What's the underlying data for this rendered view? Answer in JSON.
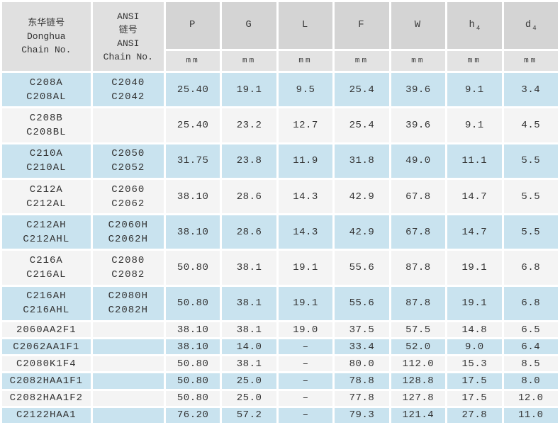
{
  "colors": {
    "row_highlight_blue": "#c9e3ef",
    "row_plain": "#f4f4f4",
    "header_symbol_bg": "#d4d4d4",
    "header_unit_bg": "#e3e3e3",
    "header_name_bg": "#e0e0e0",
    "text": "#333333"
  },
  "table": {
    "header": {
      "donghua": "东华链号\nDonghua\nChain No.",
      "ansi": "ANSI\n链号\nANSI\nChain No."
    },
    "columns": [
      {
        "symbol": "P",
        "sub": "",
        "unit": "mm"
      },
      {
        "symbol": "G",
        "sub": "",
        "unit": "mm"
      },
      {
        "symbol": "L",
        "sub": "",
        "unit": "mm"
      },
      {
        "symbol": "F",
        "sub": "",
        "unit": "mm"
      },
      {
        "symbol": "W",
        "sub": "",
        "unit": "mm"
      },
      {
        "symbol": "h",
        "sub": "4",
        "unit": "mm"
      },
      {
        "symbol": "d",
        "sub": "4",
        "unit": "mm"
      }
    ],
    "rows": [
      {
        "donghua": "C208A\nC208AL",
        "ansi": "C2040\nC2042",
        "shaded": true,
        "values": [
          "25.40",
          "19.1",
          "9.5",
          "25.4",
          "39.6",
          "9.1",
          "3.4"
        ]
      },
      {
        "donghua": "C208B\nC208BL",
        "ansi": "",
        "shaded": false,
        "values": [
          "25.40",
          "23.2",
          "12.7",
          "25.4",
          "39.6",
          "9.1",
          "4.5"
        ]
      },
      {
        "donghua": "C210A\nC210AL",
        "ansi": "C2050\nC2052",
        "shaded": true,
        "values": [
          "31.75",
          "23.8",
          "11.9",
          "31.8",
          "49.0",
          "11.1",
          "5.5"
        ]
      },
      {
        "donghua": "C212A\nC212AL",
        "ansi": "C2060\nC2062",
        "shaded": false,
        "values": [
          "38.10",
          "28.6",
          "14.3",
          "42.9",
          "67.8",
          "14.7",
          "5.5"
        ]
      },
      {
        "donghua": "C212AH\nC212AHL",
        "ansi": "C2060H\nC2062H",
        "shaded": true,
        "values": [
          "38.10",
          "28.6",
          "14.3",
          "42.9",
          "67.8",
          "14.7",
          "5.5"
        ]
      },
      {
        "donghua": "C216A\nC216AL",
        "ansi": "C2080\nC2082",
        "shaded": false,
        "values": [
          "50.80",
          "38.1",
          "19.1",
          "55.6",
          "87.8",
          "19.1",
          "6.8"
        ]
      },
      {
        "donghua": "C216AH\nC216AHL",
        "ansi": "C2080H\nC2082H",
        "shaded": true,
        "values": [
          "50.80",
          "38.1",
          "19.1",
          "55.6",
          "87.8",
          "19.1",
          "6.8"
        ]
      },
      {
        "donghua": "2060AA2F1",
        "ansi": "",
        "shaded": false,
        "values": [
          "38.10",
          "38.1",
          "19.0",
          "37.5",
          "57.5",
          "14.8",
          "6.5"
        ]
      },
      {
        "donghua": "C2062AA1F1",
        "ansi": "",
        "shaded": true,
        "values": [
          "38.10",
          "14.0",
          "–",
          "33.4",
          "52.0",
          "9.0",
          "6.4"
        ]
      },
      {
        "donghua": "C2080K1F4",
        "ansi": "",
        "shaded": false,
        "values": [
          "50.80",
          "38.1",
          "–",
          "80.0",
          "112.0",
          "15.3",
          "8.5"
        ]
      },
      {
        "donghua": "C2082HAA1F1",
        "ansi": "",
        "shaded": true,
        "values": [
          "50.80",
          "25.0",
          "–",
          "78.8",
          "128.8",
          "17.5",
          "8.0"
        ]
      },
      {
        "donghua": "C2082HAA1F2",
        "ansi": "",
        "shaded": false,
        "values": [
          "50.80",
          "25.0",
          "–",
          "77.8",
          "127.8",
          "17.5",
          "12.0"
        ]
      },
      {
        "donghua": "C2122HAA1",
        "ansi": "",
        "shaded": true,
        "values": [
          "76.20",
          "57.2",
          "–",
          "79.3",
          "121.4",
          "27.8",
          "11.0"
        ]
      }
    ]
  }
}
